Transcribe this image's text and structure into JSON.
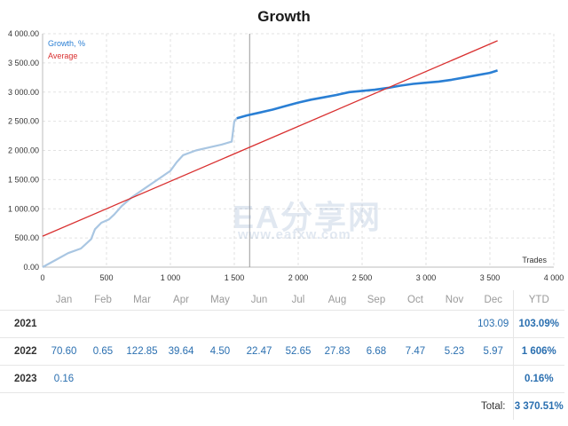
{
  "chart_data": {
    "type": "line",
    "title": "Growth",
    "xlabel": "Trades",
    "ylabel": "",
    "xlim": [
      0,
      4000
    ],
    "ylim": [
      0,
      4000
    ],
    "x_ticks": [
      "0",
      "500",
      "1 000",
      "1 500",
      "2 000",
      "2 500",
      "3 000",
      "3 500",
      "4 000"
    ],
    "y_ticks": [
      "0.00",
      "500.00",
      "1 000.00",
      "1 500.00",
      "2 000.00",
      "2 500.00",
      "3 000.00",
      "3 500.00",
      "4 000.00"
    ],
    "grid": true,
    "legend": "top-left",
    "series": [
      {
        "name": "Growth, %",
        "color": "#2a7fd4",
        "x": [
          0,
          100,
          200,
          300,
          380,
          410,
          460,
          520,
          560,
          620,
          700,
          800,
          900,
          1000,
          1050,
          1100,
          1200,
          1300,
          1400,
          1480,
          1500,
          1520,
          1600,
          1700,
          1800,
          1900,
          2000,
          2100,
          2200,
          2300,
          2400,
          2500,
          2600,
          2700,
          2800,
          2900,
          3000,
          3100,
          3200,
          3300,
          3400,
          3500,
          3560
        ],
        "y": [
          0,
          120,
          240,
          320,
          480,
          650,
          760,
          820,
          900,
          1050,
          1200,
          1350,
          1500,
          1650,
          1800,
          1920,
          2000,
          2050,
          2100,
          2150,
          2500,
          2550,
          2600,
          2650,
          2700,
          2760,
          2820,
          2870,
          2910,
          2950,
          3000,
          3020,
          3040,
          3070,
          3110,
          3140,
          3160,
          3180,
          3210,
          3250,
          3290,
          3330,
          3370
        ]
      },
      {
        "name": "Average",
        "color": "#d93030",
        "x": [
          0,
          3560
        ],
        "y": [
          530,
          3880
        ]
      }
    ],
    "split_x": 1620
  },
  "table": {
    "months": [
      "Jan",
      "Feb",
      "Mar",
      "Apr",
      "May",
      "Jun",
      "Jul",
      "Aug",
      "Sep",
      "Oct",
      "Nov",
      "Dec"
    ],
    "ytd_header": "YTD",
    "rows": [
      {
        "year": "2021",
        "values": [
          "",
          "",
          "",
          "",
          "",
          "",
          "",
          "",
          "",
          "",
          "",
          "103.09"
        ],
        "ytd": "103.09%"
      },
      {
        "year": "2022",
        "values": [
          "70.60",
          "0.65",
          "122.85",
          "39.64",
          "4.50",
          "22.47",
          "52.65",
          "27.83",
          "6.68",
          "7.47",
          "5.23",
          "5.97"
        ],
        "ytd": "1 606%"
      },
      {
        "year": "2023",
        "values": [
          "0.16",
          "",
          "",
          "",
          "",
          "",
          "",
          "",
          "",
          "",
          "",
          ""
        ],
        "ytd": "0.16%"
      }
    ],
    "total_label": "Total:",
    "total_value": "3 370.51%"
  },
  "watermark": {
    "line1": "EA分享网",
    "line2": "www.eafxw.com"
  }
}
